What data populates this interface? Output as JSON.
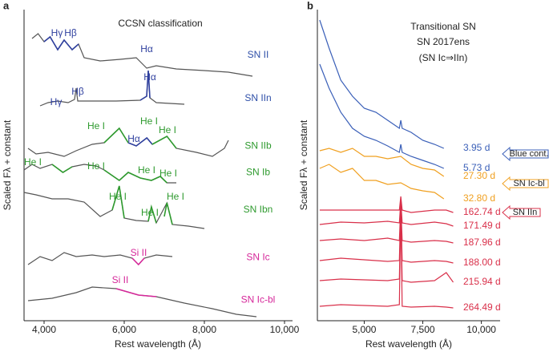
{
  "chart_data": [
    {
      "type": "line",
      "panel": "a",
      "title": "CCSN classification",
      "xlabel": "Rest wavelength (Å)",
      "ylabel": "Scaled Fλ + constant",
      "xlim": [
        3500,
        10200
      ],
      "ylim": [
        0,
        388
      ],
      "xticks": [
        {
          "value": 4000,
          "label": "4,000"
        },
        {
          "value": 6000,
          "label": "6,000"
        },
        {
          "value": 8000,
          "label": "8,000"
        },
        {
          "value": 10000,
          "label": "10,000"
        }
      ],
      "series": [
        {
          "name": "SN II",
          "color": "#555555",
          "label_color": "#2e4fa8",
          "x": [
            3700,
            3850,
            4000,
            4150,
            4340,
            4500,
            4700,
            4860,
            5000,
            5400,
            5900,
            6300,
            6560,
            6800,
            7300,
            8000,
            8600,
            9200
          ],
          "values": [
            352,
            358,
            348,
            354,
            338,
            350,
            338,
            345,
            328,
            324,
            326,
            328,
            315,
            318,
            314,
            312,
            310,
            305
          ]
        },
        {
          "name": "SN IIn",
          "color": "#555555",
          "label_color": "#2e4fa8",
          "x": [
            3900,
            4100,
            4340,
            4600,
            4760,
            4800,
            4840,
            5200,
            5800,
            6400,
            6560,
            6600,
            6640,
            6800,
            7500
          ],
          "values": [
            268,
            272,
            274,
            272,
            276,
            290,
            274,
            274,
            274,
            275,
            280,
            312,
            278,
            272,
            270
          ]
        },
        {
          "name": "SN IIb",
          "color": "#555555",
          "label_color": "#2e9a2e",
          "x": [
            3600,
            3800,
            4100,
            4500,
            4800,
            5200,
            5500,
            5876,
            6100,
            6300,
            6563,
            6700,
            7065,
            7300,
            7800,
            8200,
            8500,
            8600
          ],
          "values": [
            215,
            208,
            210,
            205,
            212,
            220,
            222,
            240,
            222,
            218,
            228,
            220,
            230,
            215,
            210,
            205,
            215,
            225
          ]
        },
        {
          "name": "SN Ib",
          "color": "#555555",
          "label_color": "#2e9a2e",
          "x": [
            3500,
            3700,
            3900,
            4200,
            4471,
            4700,
            5000,
            5300,
            5500,
            5876,
            6100,
            6400,
            6678,
            6900,
            7065,
            7300
          ],
          "values": [
            188,
            195,
            190,
            195,
            185,
            192,
            195,
            193,
            188,
            175,
            185,
            178,
            175,
            180,
            172,
            172
          ]
        },
        {
          "name": "SN Ibn",
          "color": "#555555",
          "label_color": "#2e9a2e",
          "x": [
            3500,
            3800,
            4200,
            4600,
            5000,
            5400,
            5700,
            5876,
            6000,
            6300,
            6600,
            6678,
            6800,
            7065,
            7200,
            7600,
            8000
          ],
          "values": [
            160,
            157,
            152,
            152,
            148,
            130,
            138,
            168,
            128,
            125,
            124,
            142,
            122,
            147,
            120,
            118,
            115
          ]
        },
        {
          "name": "SN Ic",
          "color": "#555555",
          "label_color": "#d6289a",
          "x": [
            3600,
            3900,
            4200,
            4500,
            4800,
            5200,
            5500,
            5900,
            6200,
            6355,
            6500,
            6800,
            7200
          ],
          "values": [
            70,
            80,
            75,
            85,
            80,
            82,
            80,
            82,
            78,
            70,
            78,
            82,
            80
          ]
        },
        {
          "name": "SN Ic-bl",
          "color": "#555555",
          "label_color": "#d6289a",
          "x": [
            3600,
            4200,
            4800,
            5200,
            5800,
            6355,
            6800,
            7500,
            8200,
            8800,
            9300
          ],
          "values": [
            25,
            28,
            35,
            42,
            40,
            32,
            30,
            22,
            15,
            8,
            5
          ]
        },
        {
          "color": "#2e3f9e",
          "x": [
            4000,
            4150,
            4340,
            4500,
            4700,
            4860
          ],
          "values": [
            348,
            354,
            338,
            350,
            338,
            345
          ]
        },
        {
          "color": "#2e3f9e",
          "x": [
            6400,
            6560,
            6600,
            6640
          ],
          "values": [
            275,
            280,
            312,
            278
          ]
        },
        {
          "color": "#2e9a2e",
          "x": [
            5500,
            5876,
            6100
          ],
          "values": [
            222,
            240,
            222
          ]
        },
        {
          "color": "#2e3f9e",
          "x": [
            6100,
            6300,
            6563,
            6700
          ],
          "values": [
            222,
            218,
            228,
            220
          ]
        },
        {
          "color": "#2e9a2e",
          "x": [
            6700,
            7065,
            7300
          ],
          "values": [
            220,
            230,
            215
          ]
        },
        {
          "color": "#2e9a2e",
          "x": [
            4200,
            4471,
            4700
          ],
          "values": [
            195,
            185,
            192
          ]
        },
        {
          "color": "#2e9a2e",
          "x": [
            5500,
            5876,
            6100,
            6400,
            6678,
            6900,
            7065
          ],
          "values": [
            188,
            175,
            185,
            178,
            175,
            180,
            172
          ]
        },
        {
          "color": "#2e9a2e",
          "x": [
            5700,
            5876,
            6000
          ],
          "values": [
            138,
            168,
            128
          ]
        },
        {
          "color": "#2e9a2e",
          "x": [
            6600,
            6678,
            6800
          ],
          "values": [
            124,
            142,
            122
          ]
        },
        {
          "color": "#2e9a2e",
          "x": [
            7000,
            7065,
            7200
          ],
          "values": [
            130,
            147,
            120
          ]
        },
        {
          "color": "#d6289a",
          "x": [
            6200,
            6355,
            6500
          ],
          "values": [
            78,
            70,
            78
          ]
        },
        {
          "color": "#d6289a",
          "x": [
            5800,
            6355,
            6800
          ],
          "values": [
            40,
            32,
            30
          ]
        }
      ],
      "annotations": [
        {
          "text": "Hγ",
          "x": 4320,
          "y": 358,
          "color": "#2e3f9e"
        },
        {
          "text": "Hβ",
          "x": 4660,
          "y": 358,
          "color": "#2e3f9e"
        },
        {
          "text": "Hα",
          "x": 6560,
          "y": 338,
          "color": "#2e3f9e"
        },
        {
          "text": "Hγ",
          "x": 4300,
          "y": 272,
          "color": "#2e3f9e"
        },
        {
          "text": "Hβ",
          "x": 4840,
          "y": 285,
          "color": "#2e3f9e"
        },
        {
          "text": "Hα",
          "x": 6640,
          "y": 303,
          "color": "#2e3f9e"
        },
        {
          "text": "He I",
          "x": 5300,
          "y": 242,
          "color": "#2e9a2e"
        },
        {
          "text": "He I",
          "x": 6620,
          "y": 248,
          "color": "#2e9a2e"
        },
        {
          "text": "Hα",
          "x": 6240,
          "y": 226,
          "color": "#2e3f9e"
        },
        {
          "text": "He I",
          "x": 7080,
          "y": 237,
          "color": "#2e9a2e"
        },
        {
          "text": "He I",
          "x": 3720,
          "y": 197,
          "color": "#2e9a2e"
        },
        {
          "text": "He I",
          "x": 5300,
          "y": 192,
          "color": "#2e9a2e"
        },
        {
          "text": "He I",
          "x": 6560,
          "y": 187,
          "color": "#2e9a2e"
        },
        {
          "text": "He I",
          "x": 7100,
          "y": 183,
          "color": "#2e9a2e"
        },
        {
          "text": "He I",
          "x": 5840,
          "y": 154,
          "color": "#2e9a2e"
        },
        {
          "text": "He I",
          "x": 6640,
          "y": 134,
          "color": "#2e9a2e"
        },
        {
          "text": "He I",
          "x": 7280,
          "y": 154,
          "color": "#2e9a2e"
        },
        {
          "text": "Si II",
          "x": 6360,
          "y": 84,
          "color": "#d6289a"
        },
        {
          "text": "Si II",
          "x": 5900,
          "y": 50,
          "color": "#d6289a"
        }
      ]
    },
    {
      "type": "line",
      "panel": "b",
      "title": "Transitional SN",
      "subtitle": "SN 2017ens",
      "note": "(SN Ic⇒IIn)",
      "xlabel": "Rest wavelength (Å)",
      "ylabel": "Scaled Fλ + constant",
      "xlim": [
        3000,
        10800
      ],
      "ylim": [
        0,
        388
      ],
      "xticks": [
        {
          "value": 5000,
          "label": "5,000"
        },
        {
          "value": 7500,
          "label": "7,500"
        },
        {
          "value": 10000,
          "label": "10,000"
        }
      ],
      "series": [
        {
          "name": "3.95 d",
          "color": "#3a5fb8",
          "x": [
            3100,
            3500,
            4000,
            4500,
            5000,
            5500,
            6000,
            6500,
            6563,
            6620,
            7000,
            7500,
            8000,
            8400
          ],
          "values": [
            375,
            340,
            300,
            280,
            265,
            260,
            250,
            240,
            250,
            240,
            235,
            225,
            220,
            215
          ]
        },
        {
          "name": "5.73 d",
          "color": "#3a5fb8",
          "x": [
            3100,
            3500,
            4000,
            4500,
            5000,
            5500,
            6000,
            6500,
            6563,
            6620,
            7000,
            7500,
            8000,
            8400
          ],
          "values": [
            320,
            290,
            260,
            240,
            230,
            225,
            218,
            210,
            220,
            210,
            205,
            200,
            195,
            190
          ]
        },
        {
          "name": "27.30 d",
          "color": "#f0a020",
          "x": [
            3100,
            3500,
            4000,
            4500,
            5000,
            5500,
            6000,
            6563,
            7000,
            7500,
            8000,
            8400
          ],
          "values": [
            212,
            215,
            210,
            215,
            205,
            205,
            202,
            205,
            195,
            190,
            188,
            180
          ]
        },
        {
          "name": "32.80 d",
          "color": "#f0a020",
          "x": [
            3100,
            3500,
            4000,
            4500,
            5000,
            5500,
            6000,
            6563,
            7000,
            7500,
            8000,
            8400
          ],
          "values": [
            190,
            195,
            185,
            190,
            175,
            175,
            170,
            172,
            165,
            162,
            160,
            152
          ]
        },
        {
          "name": "162.74 d",
          "color": "#d9304a",
          "x": [
            3100,
            4000,
            5000,
            6000,
            6500,
            6563,
            6620,
            7000,
            8000,
            8500,
            8800
          ],
          "values": [
            138,
            138,
            138,
            138,
            138,
            155,
            138,
            135,
            138,
            138,
            135
          ]
        },
        {
          "name": "171.49 d",
          "color": "#d9304a",
          "x": [
            3100,
            4000,
            5000,
            6000,
            6500,
            6563,
            6620,
            7000,
            8000,
            8500,
            8800
          ],
          "values": [
            120,
            123,
            122,
            124,
            122,
            150,
            122,
            120,
            123,
            121,
            118
          ]
        },
        {
          "name": "187.96 d",
          "color": "#d9304a",
          "x": [
            3100,
            4000,
            5000,
            6000,
            6500,
            6563,
            6620,
            7000,
            8000,
            8500,
            8800
          ],
          "values": [
            100,
            102,
            100,
            103,
            100,
            145,
            100,
            98,
            100,
            99,
            97
          ]
        },
        {
          "name": "188.00 d",
          "color": "#d9304a",
          "x": [
            3100,
            4000,
            5000,
            6000,
            6500,
            6563,
            6620,
            7000,
            8000,
            8500,
            8800
          ],
          "values": [
            75,
            78,
            76,
            74,
            75,
            145,
            75,
            73,
            75,
            74,
            72
          ]
        },
        {
          "name": "215.94 d",
          "color": "#d9304a",
          "x": [
            3100,
            4000,
            5000,
            6000,
            6500,
            6563,
            6620,
            7000,
            8000,
            8500,
            8800
          ],
          "values": [
            50,
            52,
            51,
            50,
            52,
            140,
            50,
            48,
            50,
            60,
            48
          ]
        },
        {
          "name": "264.49 d",
          "color": "#d9304a",
          "x": [
            3100,
            4000,
            5000,
            6000,
            6500,
            6563,
            6620,
            7000,
            8000,
            8500,
            8800
          ],
          "values": [
            18,
            20,
            19,
            18,
            20,
            140,
            18,
            17,
            18,
            17,
            16
          ]
        }
      ],
      "callouts": [
        {
          "text": "Blue cont.",
          "color": "#3a5fb8"
        },
        {
          "text": "SN Ic-bl",
          "color": "#f0a020"
        },
        {
          "text": "SN IIn",
          "color": "#d9304a"
        }
      ]
    }
  ]
}
